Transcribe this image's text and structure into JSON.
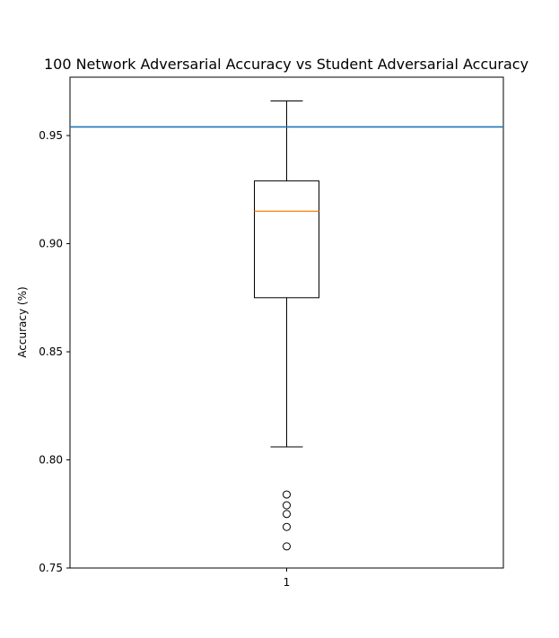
{
  "chart_data": {
    "type": "boxplot",
    "title": "100 Network Adversarial Accuracy vs Student Adversarial Accuracy",
    "xlabel": "",
    "ylabel": "Accuracy (%)",
    "ylim": [
      0.75,
      0.977
    ],
    "yticks": [
      {
        "value": 0.75,
        "label": "0.75"
      },
      {
        "value": 0.8,
        "label": "0.80"
      },
      {
        "value": 0.85,
        "label": "0.85"
      },
      {
        "value": 0.9,
        "label": "0.90"
      },
      {
        "value": 0.95,
        "label": "0.95"
      }
    ],
    "categories": [
      "1"
    ],
    "box": {
      "whisker_low": 0.806,
      "q1": 0.875,
      "median": 0.915,
      "q3": 0.929,
      "whisker_high": 0.966,
      "outliers": [
        0.784,
        0.779,
        0.775,
        0.769,
        0.76
      ]
    },
    "reference_line": {
      "value": 0.954,
      "color": "#1f77b4"
    },
    "colors": {
      "box": "#000000",
      "median": "#ff7f0e",
      "reference": "#1f77b4"
    }
  }
}
